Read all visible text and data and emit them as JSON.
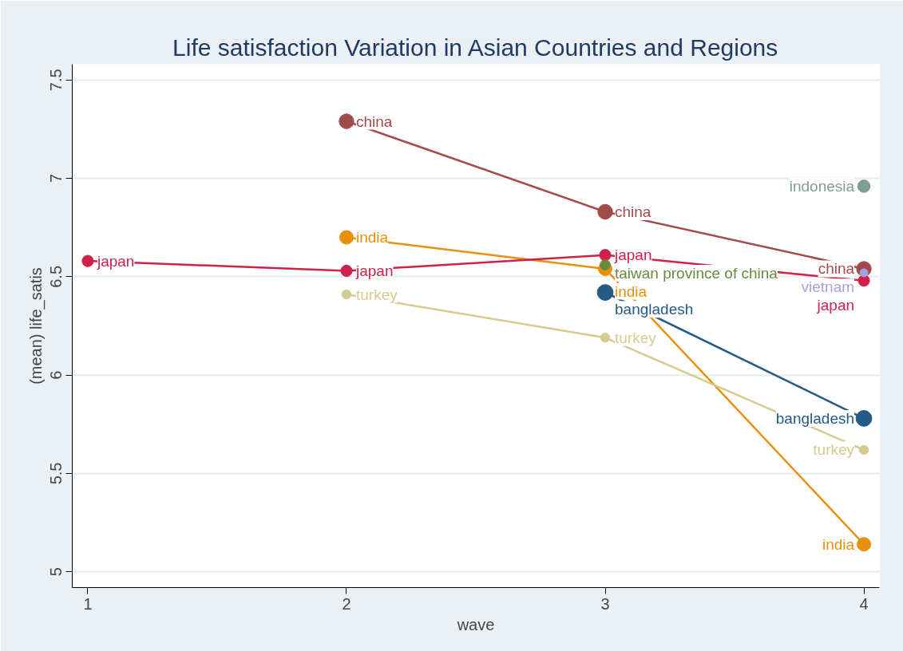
{
  "chart_data": {
    "type": "line",
    "title": "Life satisfaction Variation in Asian Countries and Regions",
    "xlabel": "wave",
    "ylabel": "(mean) life_satis",
    "xlim": [
      0.94,
      4.06
    ],
    "xticks": [
      1,
      2,
      3,
      4
    ],
    "ylim": [
      4.92,
      7.58
    ],
    "yticks": [
      5,
      5.5,
      6,
      6.5,
      7,
      7.5
    ],
    "grid": "y",
    "marker": "circle",
    "line_style": "solid",
    "series": [
      {
        "name": "bangladesh",
        "color": "#245a84",
        "x": [
          3,
          4
        ],
        "values": [
          6.42,
          5.78
        ]
      },
      {
        "name": "china",
        "color": "#a34a4a",
        "x": [
          2,
          3,
          4
        ],
        "values": [
          7.29,
          6.83,
          6.54
        ]
      },
      {
        "name": "india",
        "color": "#e8900a",
        "x": [
          2,
          3,
          4
        ],
        "values": [
          6.7,
          6.54,
          5.14
        ]
      },
      {
        "name": "indonesia",
        "color": "#7f9d93",
        "x": [
          4
        ],
        "values": [
          6.96
        ]
      },
      {
        "name": "japan",
        "color": "#d11f48",
        "x": [
          1,
          2,
          3,
          4
        ],
        "values": [
          6.58,
          6.53,
          6.61,
          6.48
        ]
      },
      {
        "name": "taiwan province of china",
        "color": "#6a8a3e",
        "x": [
          3
        ],
        "values": [
          6.56
        ]
      },
      {
        "name": "turkey",
        "color": "#d4cc8e",
        "x": [
          2,
          3,
          4
        ],
        "values": [
          6.41,
          6.19,
          5.62
        ]
      },
      {
        "name": "vietnam",
        "color": "#a6a2df",
        "x": [
          4
        ],
        "values": [
          6.52
        ]
      }
    ]
  }
}
